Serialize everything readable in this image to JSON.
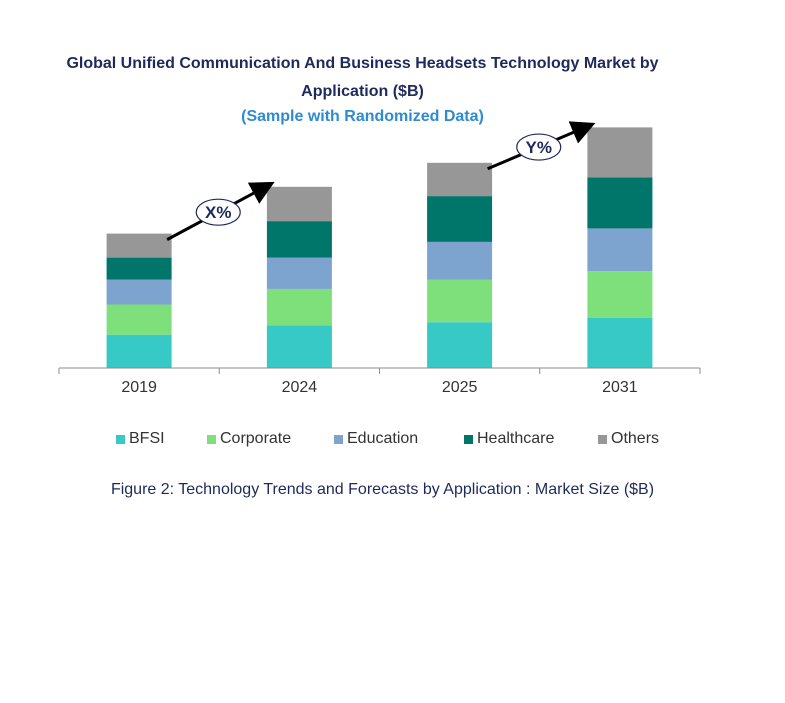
{
  "header": {
    "title_line1": "Global Unified Communication And Business Headsets Technology Market by",
    "title_line2": "Application ($B)",
    "subtitle": "(Sample with Randomized Data)"
  },
  "chart_data": {
    "type": "bar",
    "stacked": true,
    "categories": [
      "2019",
      "2024",
      "2025",
      "2031"
    ],
    "series": [
      {
        "name": "BFSI",
        "color": "#36c9c6",
        "values": [
          32,
          41,
          44,
          48
        ]
      },
      {
        "name": "Corporate",
        "color": "#7ee07b",
        "values": [
          29,
          35,
          41,
          45
        ]
      },
      {
        "name": "Education",
        "color": "#7ca4cf",
        "values": [
          24,
          30,
          36,
          41
        ]
      },
      {
        "name": "Healthcare",
        "color": "#00756a",
        "values": [
          21,
          35,
          44,
          49
        ]
      },
      {
        "name": "Others",
        "color": "#979797",
        "values": [
          23,
          33,
          32,
          48
        ]
      }
    ],
    "ylim": [
      0,
      240
    ],
    "legend_position": "bottom",
    "annotations": [
      {
        "label": "X%",
        "from": "2019",
        "to": "2024"
      },
      {
        "label": "Y%",
        "from": "2025",
        "to": "2031"
      }
    ],
    "grid": false
  },
  "caption": "Figure 2: Technology  Trends  and Forecasts by Application : Market Size ($B)"
}
